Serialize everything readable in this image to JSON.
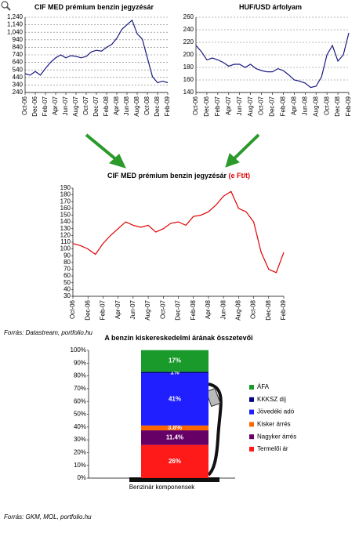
{
  "chart_data": [
    {
      "type": "line",
      "title": "CIF MED prémium benzin jegyzésár",
      "categories": [
        "Oct-06",
        null,
        "Dec-06",
        null,
        "Feb-07",
        null,
        "Apr-07",
        null,
        "Jun-07",
        null,
        "Aug-07",
        null,
        "Oct-07",
        null,
        "Dec-07",
        null,
        "Feb-08",
        null,
        "Apr-08",
        null,
        "Jun-08",
        null,
        "Aug-08",
        null,
        "Oct-08",
        null,
        "Dec-08",
        null,
        "Feb-09"
      ],
      "values": [
        490,
        470,
        520,
        470,
        560,
        640,
        700,
        740,
        700,
        730,
        720,
        700,
        720,
        780,
        800,
        790,
        840,
        880,
        960,
        1080,
        1140,
        1200,
        1020,
        950,
        700,
        450,
        370,
        390,
        370
      ],
      "color": "#1a1a80",
      "ylim": [
        240,
        1240
      ],
      "yticks": [
        240,
        340,
        440,
        540,
        640,
        740,
        840,
        940,
        {
          "value": 1040,
          "label": "1,040"
        },
        {
          "value": 1140,
          "label": "1,140"
        },
        {
          "value": 1240,
          "label": "1,240"
        }
      ],
      "grid": true
    },
    {
      "type": "line",
      "title": "HUF/USD árfolyam",
      "categories": [
        "Oct-06",
        null,
        "Dec-06",
        null,
        "Feb-07",
        null,
        "Apr-07",
        null,
        "Jun-07",
        null,
        "Aug-07",
        null,
        "Oct-07",
        null,
        "Dec-07",
        null,
        "Feb-08",
        null,
        "Apr-08",
        null,
        "Jun-08",
        null,
        "Aug-08",
        null,
        "Oct-08",
        null,
        "Dec-08",
        null,
        "Feb-09"
      ],
      "values": [
        215,
        205,
        192,
        195,
        192,
        188,
        182,
        185,
        185,
        180,
        185,
        178,
        175,
        173,
        173,
        178,
        175,
        168,
        160,
        158,
        155,
        148,
        150,
        165,
        200,
        215,
        190,
        200,
        235
      ],
      "color": "#1a1a80",
      "ylim": [
        140,
        260
      ],
      "yticks": [
        140,
        160,
        180,
        200,
        220,
        240,
        260
      ],
      "grid": true
    },
    {
      "type": "line",
      "title": "CIF MED prémium benzin jegyzésár",
      "unit": "(e Ft/t)",
      "categories": [
        "Oct-06",
        null,
        "Dec-06",
        null,
        "Feb-07",
        null,
        "Apr-07",
        null,
        "Jun-07",
        null,
        "Aug-07",
        null,
        "Oct-07",
        null,
        "Dec-07",
        null,
        "Feb-08",
        null,
        "Apr-08",
        null,
        "Jun-08",
        null,
        "Aug-08",
        null,
        "Oct-08",
        null,
        "Dec-08",
        null,
        "Feb-09"
      ],
      "values": [
        108,
        105,
        100,
        92,
        108,
        120,
        130,
        140,
        135,
        132,
        135,
        125,
        130,
        138,
        140,
        135,
        148,
        150,
        155,
        165,
        178,
        185,
        160,
        155,
        140,
        95,
        70,
        65,
        95
      ],
      "color": "#e00000",
      "ylim": [
        30,
        190
      ],
      "yticks": [
        30,
        40,
        50,
        60,
        70,
        80,
        90,
        100,
        110,
        120,
        130,
        140,
        150,
        160,
        170,
        180,
        190
      ],
      "grid": false,
      "source": "Forrás: Datastream, portfolio.hu"
    },
    {
      "type": "stacked-bar",
      "title": "A benzin kiskereskedelmi árának összetevői",
      "categories": [
        "Benzinár komponensek"
      ],
      "series": [
        {
          "name": "Termelői ár",
          "color": "#ff1a1a",
          "values": [
            26
          ],
          "value_labels": [
            "26%"
          ]
        },
        {
          "name": "Nagyker árrés",
          "color": "#660066",
          "values": [
            11.4
          ],
          "value_labels": [
            "11.4%"
          ]
        },
        {
          "name": "Kisker árrés",
          "color": "#ff6600",
          "values": [
            3.8
          ],
          "value_labels": [
            "3.8%"
          ]
        },
        {
          "name": "Jövedéki adó",
          "color": "#1f1fff",
          "values": [
            41
          ],
          "value_labels": [
            "41%"
          ]
        },
        {
          "name": "KKKSZ díj",
          "color": "#000080",
          "values": [
            1
          ],
          "value_labels": [
            "1%"
          ]
        },
        {
          "name": "ÁFA",
          "color": "#1a9a2a",
          "values": [
            17
          ],
          "value_labels": [
            "17%"
          ]
        }
      ],
      "ylim": [
        0,
        100
      ],
      "yticks": [
        {
          "value": 0,
          "label": "0%"
        },
        {
          "value": 10,
          "label": "10%"
        },
        {
          "value": 20,
          "label": "20%"
        },
        {
          "value": 30,
          "label": "30%"
        },
        {
          "value": 40,
          "label": "40%"
        },
        {
          "value": 50,
          "label": "50%"
        },
        {
          "value": 60,
          "label": "60%"
        },
        {
          "value": 70,
          "label": "70%"
        },
        {
          "value": 80,
          "label": "80%"
        },
        {
          "value": 90,
          "label": "90%"
        },
        {
          "value": 100,
          "label": "100%"
        }
      ],
      "grid": false,
      "legend": "right",
      "source": "Forrás: GKM, MOL, portfolio.hu"
    }
  ]
}
